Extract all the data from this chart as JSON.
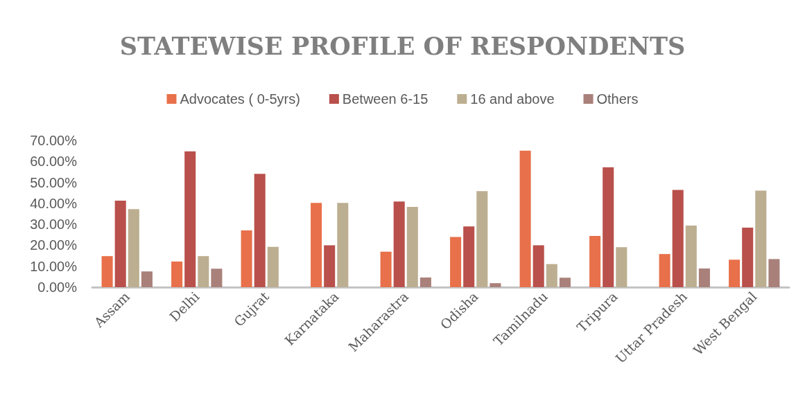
{
  "chart_data": {
    "type": "bar",
    "title": "STATEWISE PROFILE OF RESPONDENTS",
    "categories": [
      "Assam",
      "Delhi",
      "Gujrat",
      "Karnataka",
      "Maharastra",
      "Odisha",
      "Tamilnadu",
      "Tripura",
      "Uttar Pradesh",
      "West Bengal"
    ],
    "series": [
      {
        "name": "Advocates ( 0-5yrs)",
        "color": "#e8704a",
        "values": [
          14.8,
          12.2,
          27.1,
          40.2,
          16.9,
          23.9,
          65.1,
          24.4,
          15.8,
          13.1
        ]
      },
      {
        "name": "Between 6-15",
        "color": "#b9504b",
        "values": [
          41.3,
          64.8,
          54.1,
          20.0,
          40.9,
          29.0,
          20.0,
          57.2,
          46.4,
          28.4
        ]
      },
      {
        "name": "16 and above",
        "color": "#bcae90",
        "values": [
          37.2,
          14.8,
          19.2,
          40.2,
          38.3,
          45.8,
          11.0,
          19.1,
          29.4,
          46.1
        ]
      },
      {
        "name": "Others",
        "color": "#a9807a",
        "values": [
          7.5,
          8.8,
          null,
          null,
          4.6,
          1.9,
          4.5,
          null,
          8.9,
          13.4
        ]
      }
    ],
    "ylim": [
      0,
      70
    ],
    "yticks": [
      {
        "value": 0,
        "label": "0.00%"
      },
      {
        "value": 10,
        "label": "10.00%"
      },
      {
        "value": 20,
        "label": "20.00%"
      },
      {
        "value": 30,
        "label": "30.00%"
      },
      {
        "value": 40,
        "label": "40.00%"
      },
      {
        "value": 50,
        "label": "50.00%"
      },
      {
        "value": 60,
        "label": "60.00%"
      },
      {
        "value": 70,
        "label": "70.00%"
      }
    ],
    "legend": "top"
  }
}
